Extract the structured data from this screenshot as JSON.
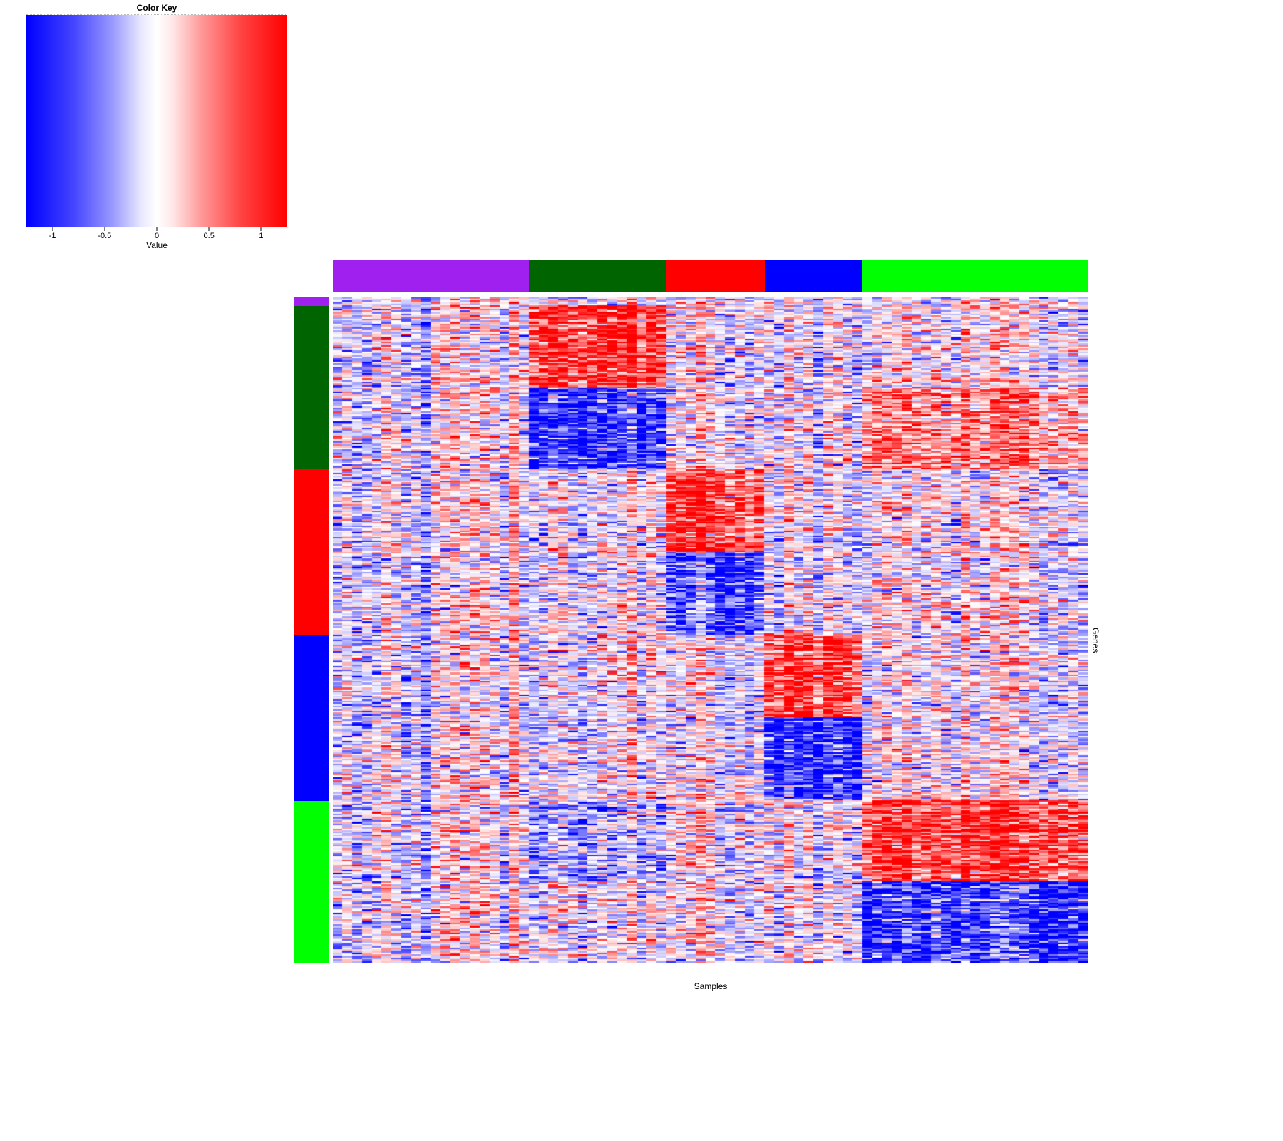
{
  "color_key": {
    "title": "Color Key",
    "axis_label": "Value",
    "ticks": [
      "-1",
      "-0.5",
      "0",
      "0.5",
      "1"
    ]
  },
  "axes": {
    "x_label": "Samples",
    "y_label": "Genes"
  },
  "chart_data": {
    "type": "heatmap",
    "title": "Color Key",
    "value_label": "Value",
    "value_range": [
      -1.25,
      1.25
    ],
    "colormap": {
      "low": "#0000ff",
      "mid": "#ffffff",
      "high": "#ff0000"
    },
    "x_label": "Samples",
    "y_label": "Genes",
    "col_groups": [
      {
        "name": "purple",
        "color": "#a020f0",
        "n_cols": 20
      },
      {
        "name": "darkgreen",
        "color": "#006400",
        "n_cols": 14
      },
      {
        "name": "red",
        "color": "#ff0000",
        "n_cols": 10
      },
      {
        "name": "blue",
        "color": "#0000ff",
        "n_cols": 10
      },
      {
        "name": "green",
        "color": "#00ff00",
        "n_cols": 23
      }
    ],
    "row_groups": [
      {
        "name": "purple",
        "color": "#a020f0",
        "n_rows": 5
      },
      {
        "name": "darkgreen",
        "color": "#006400",
        "n_rows": 99
      },
      {
        "name": "red",
        "color": "#ff0000",
        "n_rows": 100
      },
      {
        "name": "blue",
        "color": "#0000ff",
        "n_rows": 100
      },
      {
        "name": "green",
        "color": "#00ff00",
        "n_rows": 98
      }
    ],
    "blocks": [
      {
        "rows": "darkgreen",
        "row_half": "first",
        "cols": "darkgreen",
        "effect": 1.0
      },
      {
        "rows": "darkgreen",
        "row_half": "second",
        "cols": "darkgreen",
        "effect": -1.0
      },
      {
        "rows": "darkgreen",
        "row_half": "second",
        "cols": "green",
        "effect": 0.5
      },
      {
        "rows": "red",
        "row_half": "first",
        "cols": "red",
        "effect": 1.0
      },
      {
        "rows": "red",
        "row_half": "second",
        "cols": "red",
        "effect": -0.8
      },
      {
        "rows": "blue",
        "row_half": "first",
        "cols": "blue",
        "effect": 1.0
      },
      {
        "rows": "blue",
        "row_half": "second",
        "cols": "blue",
        "effect": -1.0
      },
      {
        "rows": "green",
        "row_half": "first",
        "cols": "green",
        "effect": 0.9
      },
      {
        "rows": "green",
        "row_half": "first",
        "cols": "darkgreen",
        "effect": -0.4
      },
      {
        "rows": "green",
        "row_half": "second",
        "cols": "green",
        "effect": -1.0
      }
    ],
    "noise_sd": 0.45,
    "col_bias_sd": 0.18,
    "row_bias_sd": 0.15,
    "seed": 42
  }
}
